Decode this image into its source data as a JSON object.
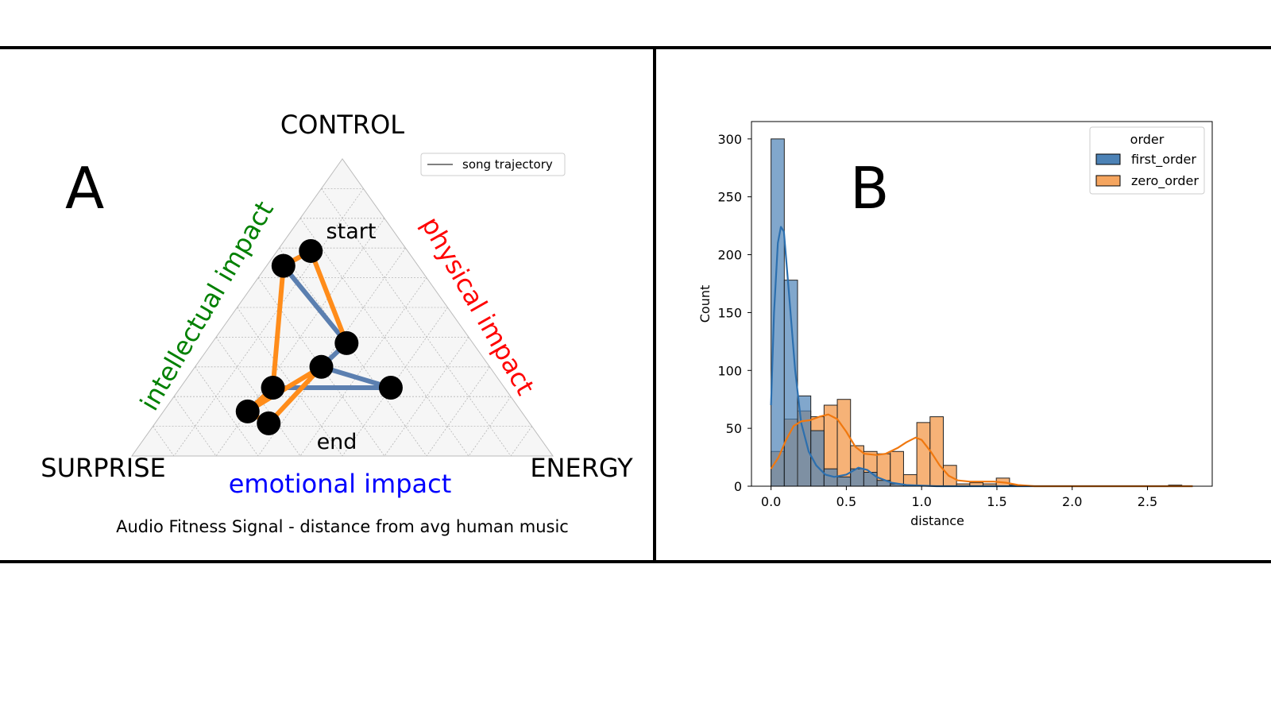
{
  "panel_a": {
    "letter": "A",
    "vertex_top": "CONTROL",
    "vertex_left": "SURPRISE",
    "vertex_right": "ENERGY",
    "axis_left": "intellectual impact",
    "axis_right": "physical impact",
    "axis_bottom": "emotional impact",
    "caption": "Audio Fitness Signal - distance from avg human music",
    "legend_label": "song trajectory",
    "start_label": "start",
    "end_label": "end",
    "colors": {
      "left_axis": "#008000",
      "right_axis": "#ff0000",
      "bottom_axis": "#0000ff",
      "blue_path": "#5b7fb0",
      "orange_path": "#ff8c1a"
    }
  },
  "panel_b": {
    "letter": "B"
  },
  "chart_data": [
    {
      "type": "ternary",
      "components": [
        "CONTROL",
        "SURPRISE",
        "ENERGY"
      ],
      "points": [
        {
          "label": "start",
          "CONTROL": 0.69,
          "SURPRISE": 0.23,
          "ENERGY": 0.08
        },
        {
          "CONTROL": 0.64,
          "SURPRISE": 0.32,
          "ENERGY": 0.04
        },
        {
          "CONTROL": 0.38,
          "SURPRISE": 0.3,
          "ENERGY": 0.32
        },
        {
          "CONTROL": 0.3,
          "SURPRISE": 0.4,
          "ENERGY": 0.3
        },
        {
          "CONTROL": 0.23,
          "SURPRISE": 0.27,
          "ENERGY": 0.5
        },
        {
          "CONTROL": 0.23,
          "SURPRISE": 0.55,
          "ENERGY": 0.22
        },
        {
          "CONTROL": 0.15,
          "SURPRISE": 0.65,
          "ENERGY": 0.2
        },
        {
          "label": "end",
          "CONTROL": 0.11,
          "SURPRISE": 0.62,
          "ENERGY": 0.27
        }
      ],
      "blue_path": [
        0,
        1,
        2,
        3,
        4,
        5,
        6,
        7
      ],
      "orange_path": [
        2,
        0,
        1,
        5,
        6,
        3,
        7,
        6
      ],
      "grid": true,
      "legend": "top-right"
    },
    {
      "type": "histogram",
      "xlabel": "distance",
      "ylabel": "Count",
      "xlim": [
        -0.13,
        2.93
      ],
      "ylim": [
        0,
        315
      ],
      "xticks": [
        "0.0",
        "0.5",
        "1.0",
        "1.5",
        "2.0",
        "2.5"
      ],
      "yticks": [
        "0",
        "50",
        "100",
        "150",
        "200",
        "250",
        "300"
      ],
      "legend": {
        "title": "order",
        "placement": "top-right"
      },
      "bin_width": 0.088,
      "series": [
        {
          "name": "first_order",
          "color": "#4c82b6",
          "bins": [
            {
              "x0": 0.0,
              "count": 300
            },
            {
              "x0": 0.088,
              "count": 178
            },
            {
              "x0": 0.176,
              "count": 78
            },
            {
              "x0": 0.264,
              "count": 48
            },
            {
              "x0": 0.352,
              "count": 15
            },
            {
              "x0": 0.44,
              "count": 8
            },
            {
              "x0": 0.528,
              "count": 15
            },
            {
              "x0": 0.616,
              "count": 12
            },
            {
              "x0": 0.704,
              "count": 5
            },
            {
              "x0": 0.792,
              "count": 2
            },
            {
              "x0": 0.88,
              "count": 1
            },
            {
              "x0": 2.64,
              "count": 1
            }
          ],
          "kde": [
            [
              0.0,
              70
            ],
            [
              0.02,
              150
            ],
            [
              0.045,
              210
            ],
            [
              0.065,
              224
            ],
            [
              0.085,
              220
            ],
            [
              0.12,
              165
            ],
            [
              0.16,
              100
            ],
            [
              0.2,
              55
            ],
            [
              0.25,
              30
            ],
            [
              0.3,
              18
            ],
            [
              0.36,
              10
            ],
            [
              0.42,
              8
            ],
            [
              0.5,
              10
            ],
            [
              0.58,
              16
            ],
            [
              0.64,
              14
            ],
            [
              0.7,
              8
            ],
            [
              0.8,
              3
            ],
            [
              0.9,
              1
            ],
            [
              1.1,
              0
            ],
            [
              2.8,
              0
            ]
          ]
        },
        {
          "name": "zero_order",
          "color": "#f5a55f",
          "bins": [
            {
              "x0": 0.0,
              "count": 30
            },
            {
              "x0": 0.088,
              "count": 58
            },
            {
              "x0": 0.176,
              "count": 65
            },
            {
              "x0": 0.264,
              "count": 60
            },
            {
              "x0": 0.352,
              "count": 70
            },
            {
              "x0": 0.44,
              "count": 75
            },
            {
              "x0": 0.528,
              "count": 35
            },
            {
              "x0": 0.616,
              "count": 30
            },
            {
              "x0": 0.704,
              "count": 28
            },
            {
              "x0": 0.792,
              "count": 30
            },
            {
              "x0": 0.88,
              "count": 10
            },
            {
              "x0": 0.968,
              "count": 55
            },
            {
              "x0": 1.056,
              "count": 60
            },
            {
              "x0": 1.144,
              "count": 18
            },
            {
              "x0": 1.232,
              "count": 2
            },
            {
              "x0": 1.32,
              "count": 3
            },
            {
              "x0": 1.408,
              "count": 2
            },
            {
              "x0": 1.496,
              "count": 7
            },
            {
              "x0": 1.584,
              "count": 1
            }
          ],
          "kde": [
            [
              0.0,
              15
            ],
            [
              0.05,
              25
            ],
            [
              0.1,
              40
            ],
            [
              0.15,
              52
            ],
            [
              0.2,
              56
            ],
            [
              0.26,
              57
            ],
            [
              0.32,
              60
            ],
            [
              0.38,
              62
            ],
            [
              0.44,
              58
            ],
            [
              0.5,
              47
            ],
            [
              0.56,
              34
            ],
            [
              0.62,
              28
            ],
            [
              0.7,
              27
            ],
            [
              0.76,
              28
            ],
            [
              0.84,
              33
            ],
            [
              0.9,
              38
            ],
            [
              0.96,
              42
            ],
            [
              1.0,
              40
            ],
            [
              1.06,
              30
            ],
            [
              1.12,
              18
            ],
            [
              1.18,
              9
            ],
            [
              1.24,
              5
            ],
            [
              1.32,
              4
            ],
            [
              1.4,
              4
            ],
            [
              1.48,
              4
            ],
            [
              1.56,
              3
            ],
            [
              1.64,
              1
            ],
            [
              1.75,
              0
            ],
            [
              2.8,
              0
            ]
          ]
        }
      ]
    }
  ]
}
